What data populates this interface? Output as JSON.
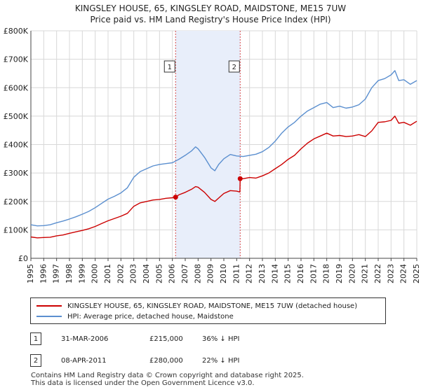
{
  "title_line1": "KINGSLEY HOUSE, 65, KINGSLEY ROAD, MAIDSTONE, ME15 7UW",
  "title_line2": "Price paid vs. HM Land Registry's House Price Index (HPI)",
  "chart_data": {
    "type": "line",
    "title": "KINGSLEY HOUSE, 65, KINGSLEY ROAD, MAIDSTONE, ME15 7UW — Price paid vs. HM Land Registry's House Price Index (HPI)",
    "xlabel": "",
    "ylabel": "",
    "xlim": [
      1995,
      2025
    ],
    "ylim": [
      0,
      800000
    ],
    "y_ticks": [
      0,
      100000,
      200000,
      300000,
      400000,
      500000,
      600000,
      700000,
      800000
    ],
    "y_tick_labels": [
      "£0",
      "£100K",
      "£200K",
      "£300K",
      "£400K",
      "£500K",
      "£600K",
      "£700K",
      "£800K"
    ],
    "x_tick_labels": [
      "1995",
      "1996",
      "1997",
      "1998",
      "1999",
      "2000",
      "2001",
      "2002",
      "2003",
      "2004",
      "2005",
      "2006",
      "2007",
      "2008",
      "2009",
      "2010",
      "2011",
      "2012",
      "2013",
      "2014",
      "2015",
      "2016",
      "2017",
      "2018",
      "2019",
      "2020",
      "2021",
      "2022",
      "2023",
      "2024",
      "2025"
    ],
    "grid": true,
    "shaded_region": [
      2006.25,
      2011.27
    ],
    "series": [
      {
        "name": "KINGSLEY HOUSE, 65, KINGSLEY ROAD, MAIDSTONE, ME15 7UW (detached house)",
        "color": "#cc0000",
        "x": [
          1995.0,
          1995.5,
          1996.0,
          1996.5,
          1997.0,
          1997.5,
          1998.0,
          1998.5,
          1999.0,
          1999.5,
          2000.0,
          2000.5,
          2001.0,
          2001.5,
          2002.0,
          2002.5,
          2003.0,
          2003.5,
          2004.0,
          2004.5,
          2005.0,
          2005.5,
          2006.0,
          2006.25,
          2006.5,
          2007.0,
          2007.5,
          2007.8,
          2008.0,
          2008.5,
          2009.0,
          2009.3,
          2009.6,
          2010.0,
          2010.5,
          2011.0,
          2011.25,
          2011.27,
          2011.5,
          2012.0,
          2012.5,
          2013.0,
          2013.5,
          2014.0,
          2014.5,
          2015.0,
          2015.5,
          2016.0,
          2016.5,
          2017.0,
          2017.5,
          2018.0,
          2018.5,
          2019.0,
          2019.5,
          2020.0,
          2020.5,
          2021.0,
          2021.5,
          2022.0,
          2022.5,
          2023.0,
          2023.3,
          2023.6,
          2024.0,
          2024.5,
          2025.0
        ],
        "y": [
          75000,
          72000,
          73000,
          74000,
          79000,
          82000,
          88000,
          93000,
          98000,
          104000,
          112000,
          122000,
          132000,
          140000,
          148000,
          158000,
          183000,
          195000,
          200000,
          205000,
          207000,
          211000,
          213000,
          215000,
          223000,
          232000,
          243000,
          252000,
          250000,
          232000,
          207000,
          200000,
          212000,
          228000,
          238000,
          236000,
          233000,
          280000,
          280000,
          284000,
          282000,
          290000,
          300000,
          315000,
          330000,
          348000,
          362000,
          385000,
          405000,
          420000,
          430000,
          440000,
          430000,
          432000,
          428000,
          430000,
          435000,
          428000,
          448000,
          478000,
          480000,
          485000,
          500000,
          475000,
          478000,
          468000,
          482000
        ]
      },
      {
        "name": "HPI: Average price, detached house, Maidstone",
        "color": "#5b8fcf",
        "x": [
          1995.0,
          1995.5,
          1996.0,
          1996.5,
          1997.0,
          1997.5,
          1998.0,
          1998.5,
          1999.0,
          1999.5,
          2000.0,
          2000.5,
          2001.0,
          2001.5,
          2002.0,
          2002.5,
          2003.0,
          2003.5,
          2004.0,
          2004.5,
          2005.0,
          2005.5,
          2006.0,
          2006.5,
          2007.0,
          2007.5,
          2007.8,
          2008.0,
          2008.5,
          2009.0,
          2009.3,
          2009.6,
          2010.0,
          2010.5,
          2011.0,
          2011.5,
          2012.0,
          2012.5,
          2013.0,
          2013.5,
          2014.0,
          2014.5,
          2015.0,
          2015.5,
          2016.0,
          2016.5,
          2017.0,
          2017.5,
          2018.0,
          2018.5,
          2019.0,
          2019.5,
          2020.0,
          2020.5,
          2021.0,
          2021.5,
          2022.0,
          2022.5,
          2023.0,
          2023.3,
          2023.6,
          2024.0,
          2024.5,
          2025.0
        ],
        "y": [
          118000,
          114000,
          115000,
          118000,
          125000,
          131000,
          138000,
          146000,
          155000,
          165000,
          178000,
          193000,
          208000,
          218000,
          230000,
          248000,
          285000,
          305000,
          315000,
          325000,
          330000,
          333000,
          336000,
          348000,
          362000,
          378000,
          392000,
          385000,
          355000,
          318000,
          308000,
          330000,
          350000,
          365000,
          360000,
          358000,
          362000,
          366000,
          375000,
          390000,
          412000,
          440000,
          462000,
          478000,
          500000,
          518000,
          530000,
          542000,
          548000,
          530000,
          535000,
          528000,
          532000,
          540000,
          560000,
          600000,
          625000,
          632000,
          645000,
          660000,
          625000,
          628000,
          612000,
          625000
        ]
      }
    ],
    "annotations": [
      {
        "label": "1",
        "x": 2006.25,
        "y": 215000,
        "date": "31-MAR-2006",
        "price": "£215,000",
        "hpi": "36% ↓ HPI"
      },
      {
        "label": "2",
        "x": 2011.27,
        "y": 280000,
        "date": "08-APR-2011",
        "price": "£280,000",
        "hpi": "22% ↓ HPI"
      }
    ]
  },
  "legend": {
    "property_label": "KINGSLEY HOUSE, 65, KINGSLEY ROAD, MAIDSTONE, ME15 7UW (detached house)",
    "hpi_label": "HPI: Average price, detached house, Maidstone",
    "property_color": "#cc0000",
    "hpi_color": "#5b8fcf"
  },
  "footer": {
    "line1": "Contains HM Land Registry data © Crown copyright and database right 2025.",
    "line2": "This data is licensed under the Open Government Licence v3.0."
  }
}
